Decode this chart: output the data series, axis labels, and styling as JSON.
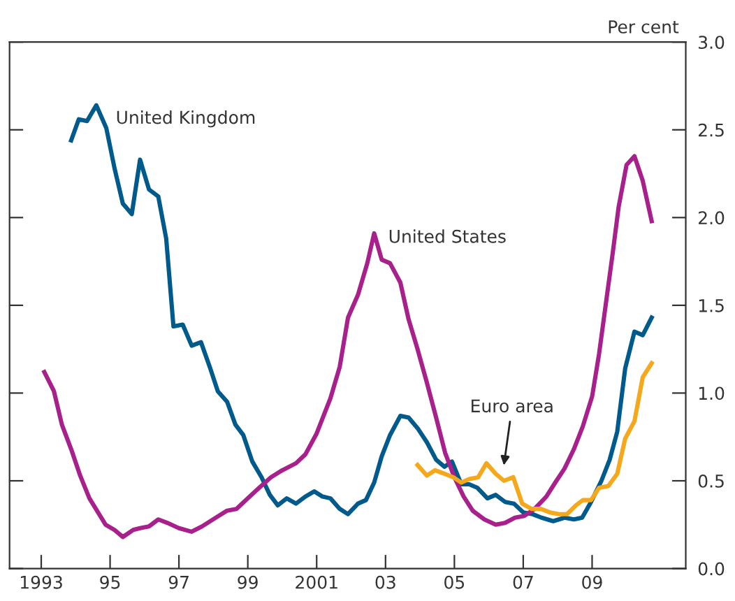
{
  "chart_data": {
    "type": "line",
    "ylabel": "Per cent",
    "xlim": [
      1992.08,
      2011.72
    ],
    "ylim": [
      0,
      3.0
    ],
    "xticks": [
      {
        "value": 1993,
        "label": "1993"
      },
      {
        "value": 1995,
        "label": "95"
      },
      {
        "value": 1997,
        "label": "97"
      },
      {
        "value": 1999,
        "label": "99"
      },
      {
        "value": 2001,
        "label": "2001"
      },
      {
        "value": 2003,
        "label": "03"
      },
      {
        "value": 2005,
        "label": "05"
      },
      {
        "value": 2007,
        "label": "07"
      },
      {
        "value": 2009,
        "label": "09"
      }
    ],
    "yticks": [
      {
        "value": 0,
        "label": "0.0"
      },
      {
        "value": 0.5,
        "label": "0.5"
      },
      {
        "value": 1.0,
        "label": "1.0"
      },
      {
        "value": 1.5,
        "label": "1.5"
      },
      {
        "value": 2.0,
        "label": "2.0"
      },
      {
        "value": 2.5,
        "label": "2.5"
      },
      {
        "value": 3.0,
        "label": "3.0"
      }
    ],
    "grid": false,
    "marker": "none",
    "line_style": "solid",
    "series": [
      {
        "color": "#005a8c",
        "x": [
          1993.87,
          1994.09,
          1994.33,
          1994.6,
          1994.89,
          1995.13,
          1995.37,
          1995.63,
          1995.87,
          1996.13,
          1996.4,
          1996.63,
          1996.84,
          1997.11,
          1997.37,
          1997.64,
          1997.91,
          1998.13,
          1998.4,
          1998.64,
          1998.87,
          1999.13,
          1999.4,
          1999.64,
          1999.87,
          2000.13,
          2000.4,
          2000.67,
          2000.93,
          2001.17,
          2001.4,
          2001.67,
          2001.91,
          2002.2,
          2002.43,
          2002.67,
          2002.89,
          2003.13,
          2003.43,
          2003.67,
          2003.93,
          2004.2,
          2004.47,
          2004.71,
          2004.93,
          2005.2,
          2005.43,
          2005.67,
          2005.96,
          2006.2,
          2006.47,
          2006.73,
          2007.0,
          2007.27,
          2007.53,
          2007.87,
          2008.2,
          2008.47,
          2008.71,
          2008.97,
          2009.27,
          2009.51,
          2009.73,
          2009.96,
          2010.23,
          2010.47,
          2010.73
        ],
        "values": [
          2.44,
          2.56,
          2.55,
          2.64,
          2.51,
          2.28,
          2.08,
          2.02,
          2.33,
          2.16,
          2.12,
          1.88,
          1.38,
          1.39,
          1.27,
          1.29,
          1.14,
          1.01,
          0.95,
          0.82,
          0.76,
          0.61,
          0.52,
          0.42,
          0.36,
          0.4,
          0.37,
          0.41,
          0.44,
          0.41,
          0.4,
          0.34,
          0.31,
          0.37,
          0.39,
          0.49,
          0.64,
          0.76,
          0.87,
          0.86,
          0.8,
          0.72,
          0.62,
          0.58,
          0.61,
          0.48,
          0.48,
          0.46,
          0.4,
          0.42,
          0.38,
          0.37,
          0.32,
          0.31,
          0.29,
          0.27,
          0.29,
          0.28,
          0.29,
          0.38,
          0.5,
          0.62,
          0.78,
          1.14,
          1.35,
          1.33,
          1.43
        ]
      },
      {
        "color": "#a8208c",
        "x": [
          1993.09,
          1993.37,
          1993.6,
          1993.87,
          1994.13,
          1994.4,
          1994.87,
          1995.13,
          1995.37,
          1995.67,
          1995.87,
          1996.13,
          1996.4,
          1996.67,
          1997.0,
          1997.37,
          1997.67,
          1998.07,
          1998.4,
          1998.67,
          1999.0,
          1999.33,
          1999.67,
          2000.0,
          2000.4,
          2000.67,
          2001.0,
          2001.4,
          2001.67,
          2001.91,
          2002.2,
          2002.47,
          2002.67,
          2002.89,
          2003.13,
          2003.43,
          2003.67,
          2003.93,
          2004.2,
          2004.47,
          2004.73,
          2005.0,
          2005.27,
          2005.53,
          2005.87,
          2006.2,
          2006.47,
          2006.76,
          2007.03,
          2007.33,
          2007.67,
          2007.93,
          2008.2,
          2008.47,
          2008.73,
          2009.0,
          2009.2,
          2009.4,
          2009.6,
          2009.77,
          2010.0,
          2010.23,
          2010.47,
          2010.73
        ],
        "values": [
          1.12,
          1.01,
          0.82,
          0.68,
          0.53,
          0.4,
          0.25,
          0.22,
          0.18,
          0.22,
          0.23,
          0.24,
          0.28,
          0.26,
          0.23,
          0.21,
          0.24,
          0.29,
          0.33,
          0.34,
          0.4,
          0.46,
          0.52,
          0.56,
          0.6,
          0.65,
          0.77,
          0.97,
          1.15,
          1.43,
          1.56,
          1.74,
          1.91,
          1.76,
          1.74,
          1.63,
          1.42,
          1.25,
          1.06,
          0.86,
          0.66,
          0.52,
          0.41,
          0.33,
          0.28,
          0.25,
          0.26,
          0.29,
          0.3,
          0.34,
          0.41,
          0.49,
          0.57,
          0.68,
          0.81,
          0.98,
          1.22,
          1.51,
          1.8,
          2.06,
          2.3,
          2.35,
          2.21,
          1.98
        ]
      },
      {
        "color": "#f5a81c",
        "x": [
          2003.93,
          2004.2,
          2004.44,
          2004.71,
          2004.97,
          2005.2,
          2005.43,
          2005.69,
          2005.93,
          2006.2,
          2006.44,
          2006.71,
          2006.97,
          2007.24,
          2007.51,
          2007.77,
          2008.04,
          2008.27,
          2008.53,
          2008.73,
          2008.97,
          2009.2,
          2009.47,
          2009.73,
          2009.96,
          2010.23,
          2010.47,
          2010.73
        ],
        "values": [
          0.59,
          0.53,
          0.56,
          0.54,
          0.52,
          0.49,
          0.51,
          0.52,
          0.6,
          0.54,
          0.5,
          0.52,
          0.37,
          0.34,
          0.34,
          0.32,
          0.31,
          0.31,
          0.36,
          0.39,
          0.39,
          0.46,
          0.47,
          0.54,
          0.74,
          0.84,
          1.09,
          1.17
        ]
      }
    ],
    "annotations": [
      "United Kingdom",
      "United States",
      "Euro area"
    ]
  }
}
